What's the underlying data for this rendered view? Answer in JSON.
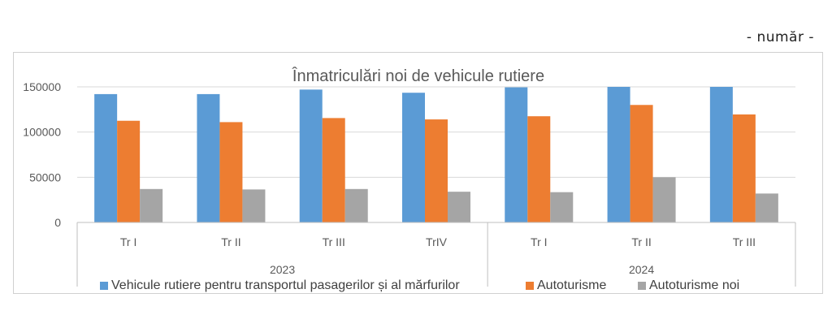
{
  "unit_label": "- număr -",
  "chart_data": {
    "type": "bar",
    "title": "Înmatriculări noi de vehicule rutiere",
    "xlabel": "",
    "ylabel": "",
    "ylim": [
      0,
      150000
    ],
    "yticks": [
      0,
      50000,
      100000,
      150000
    ],
    "grid": true,
    "legend_position": "bottom",
    "categories": [
      "Tr I",
      "Tr II",
      "Tr III",
      "TrIV",
      "Tr I",
      "Tr II",
      "Tr III"
    ],
    "groups": [
      {
        "label": "2023",
        "start": 0,
        "count": 4
      },
      {
        "label": "2024",
        "start": 4,
        "count": 3
      }
    ],
    "series": [
      {
        "name": "Vehicule rutiere pentru transportul pasagerilor și al mărfurilor",
        "color": "#5B9BD5",
        "values": [
          142000,
          142000,
          147000,
          143500,
          149500,
          150000,
          150000
        ]
      },
      {
        "name": "Autoturisme",
        "color": "#ED7D31",
        "values": [
          112500,
          111000,
          115500,
          114000,
          117500,
          130000,
          119500
        ]
      },
      {
        "name": "Autoturisme noi",
        "color": "#A5A5A5",
        "values": [
          37000,
          36500,
          37000,
          34000,
          33500,
          50000,
          32000
        ]
      }
    ]
  }
}
